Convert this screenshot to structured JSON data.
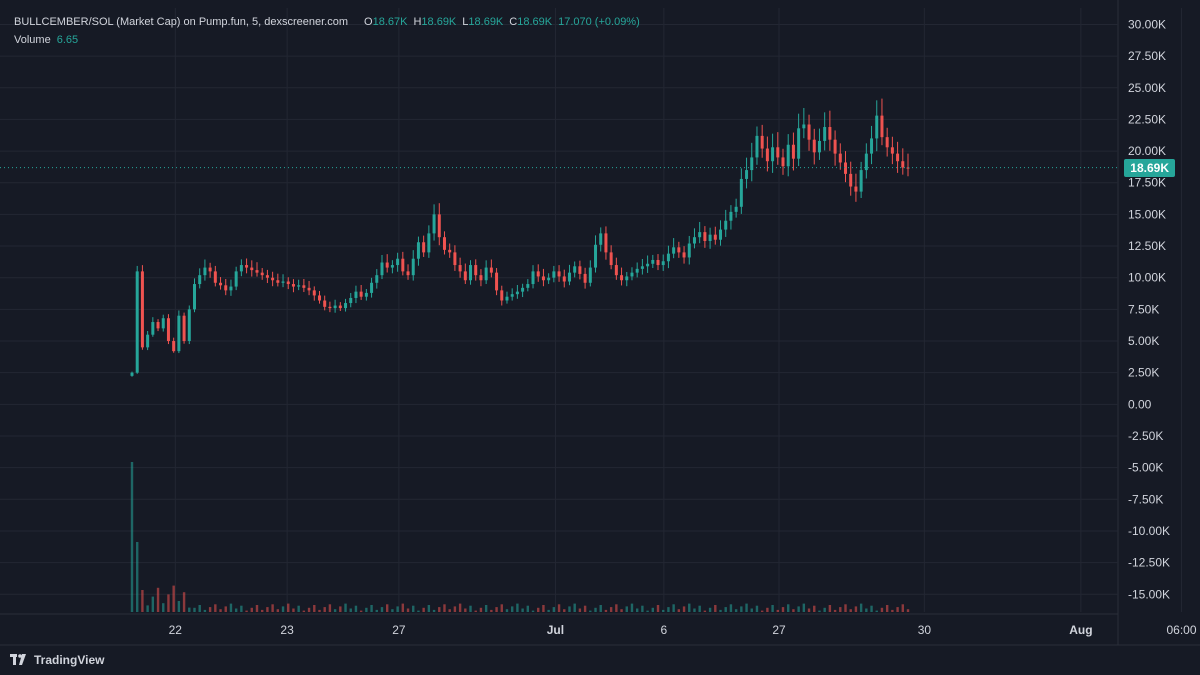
{
  "legend": {
    "symbol": "BULLCEMBER/SOL (Market Cap) on Pump.fun, 5, dexscreener.com",
    "open_label": "O",
    "open": "18.67K",
    "high_label": "H",
    "high": "18.69K",
    "low_label": "L",
    "low": "18.69K",
    "close_label": "C",
    "close": "18.69K",
    "change": "17.070 (+0.09%)",
    "volume_label": "Volume",
    "volume": "6.65"
  },
  "price_tag": "18.69K",
  "brand": "TradingView",
  "colors": {
    "background": "#161a25",
    "grid": "#232733",
    "up": "#26a69a",
    "down": "#ef5350",
    "text": "#d1d4dc"
  },
  "chart_data": {
    "type": "candlestick",
    "y_axis_labels": [
      "30.00K",
      "27.50K",
      "25.00K",
      "22.50K",
      "20.00K",
      "17.50K",
      "15.00K",
      "12.50K",
      "10.00K",
      "7.50K",
      "5.00K",
      "2.50K",
      "0.00",
      "-2.50K",
      "-5.00K",
      "-7.50K",
      "-10.00K",
      "-12.50K",
      "-15.00K"
    ],
    "y_ticks": [
      30000,
      27500,
      25000,
      22500,
      20000,
      17500,
      15000,
      12500,
      10000,
      7500,
      5000,
      2500,
      0,
      -2500,
      -5000,
      -7500,
      -10000,
      -12500,
      -15000
    ],
    "ylim": [
      -16400,
      31300
    ],
    "x_axis_labels": [
      "22",
      "23",
      "27",
      "Jul",
      "6",
      "27",
      "30",
      "Aug",
      "06:00"
    ],
    "x_label_index": [
      0.045,
      0.145,
      0.245,
      0.385,
      0.482,
      0.585,
      0.715,
      0.855,
      0.945
    ],
    "last_price": 18690,
    "series": [
      {
        "name": "price",
        "ohlc_points": [
          [
            0,
            2500
          ],
          [
            1,
            10500
          ],
          [
            2,
            4500
          ],
          [
            3,
            5500
          ],
          [
            4,
            6500
          ],
          [
            5,
            6000
          ],
          [
            6,
            6800
          ],
          [
            7,
            5000
          ],
          [
            8,
            4200
          ],
          [
            9,
            7000
          ],
          [
            10,
            5000
          ],
          [
            11,
            7500
          ],
          [
            12,
            9500
          ],
          [
            13,
            10200
          ],
          [
            14,
            10800
          ],
          [
            15,
            10500
          ],
          [
            16,
            9600
          ],
          [
            17,
            9400
          ],
          [
            18,
            9000
          ],
          [
            19,
            9300
          ],
          [
            20,
            10500
          ],
          [
            21,
            11000
          ],
          [
            22,
            10800
          ],
          [
            23,
            10600
          ],
          [
            24,
            10400
          ],
          [
            25,
            10200
          ],
          [
            26,
            10000
          ],
          [
            27,
            9800
          ],
          [
            28,
            9600
          ],
          [
            29,
            9700
          ],
          [
            30,
            9500
          ],
          [
            31,
            9300
          ],
          [
            32,
            9400
          ],
          [
            33,
            9200
          ],
          [
            34,
            9000
          ],
          [
            35,
            8600
          ],
          [
            36,
            8200
          ],
          [
            37,
            7700
          ],
          [
            38,
            7600
          ],
          [
            39,
            7800
          ],
          [
            40,
            7600
          ],
          [
            41,
            8000
          ],
          [
            42,
            8400
          ],
          [
            43,
            8900
          ],
          [
            44,
            8500
          ],
          [
            45,
            8800
          ],
          [
            46,
            9600
          ],
          [
            47,
            10200
          ],
          [
            48,
            11200
          ],
          [
            49,
            10800
          ],
          [
            50,
            11000
          ],
          [
            51,
            11500
          ],
          [
            52,
            10500
          ],
          [
            53,
            10200
          ],
          [
            54,
            11500
          ],
          [
            55,
            12800
          ],
          [
            56,
            12000
          ],
          [
            57,
            13500
          ],
          [
            58,
            15000
          ],
          [
            59,
            13200
          ],
          [
            60,
            12200
          ],
          [
            61,
            12000
          ],
          [
            62,
            11000
          ],
          [
            63,
            10500
          ],
          [
            64,
            9800
          ],
          [
            65,
            11000
          ],
          [
            66,
            10200
          ],
          [
            67,
            9800
          ],
          [
            68,
            10800
          ],
          [
            69,
            10400
          ],
          [
            70,
            9000
          ],
          [
            71,
            8200
          ],
          [
            72,
            8500
          ],
          [
            73,
            8700
          ],
          [
            74,
            8900
          ],
          [
            75,
            9200
          ],
          [
            76,
            9500
          ],
          [
            77,
            10500
          ],
          [
            78,
            10100
          ],
          [
            79,
            9800
          ],
          [
            80,
            10000
          ],
          [
            81,
            10500
          ],
          [
            82,
            10100
          ],
          [
            83,
            9700
          ],
          [
            84,
            10400
          ],
          [
            85,
            10900
          ],
          [
            86,
            10300
          ],
          [
            87,
            9600
          ],
          [
            88,
            10800
          ],
          [
            89,
            12600
          ],
          [
            90,
            13500
          ],
          [
            91,
            12000
          ],
          [
            92,
            11000
          ],
          [
            93,
            10200
          ],
          [
            94,
            9800
          ],
          [
            95,
            10100
          ],
          [
            96,
            10400
          ],
          [
            97,
            10700
          ],
          [
            98,
            10900
          ],
          [
            99,
            11100
          ],
          [
            100,
            11400
          ],
          [
            101,
            11000
          ],
          [
            102,
            11300
          ],
          [
            103,
            11900
          ],
          [
            104,
            12400
          ],
          [
            105,
            12000
          ],
          [
            106,
            11600
          ],
          [
            107,
            12700
          ],
          [
            108,
            13200
          ],
          [
            109,
            13600
          ],
          [
            110,
            12900
          ],
          [
            111,
            13400
          ],
          [
            112,
            13000
          ],
          [
            113,
            13800
          ],
          [
            114,
            14500
          ],
          [
            115,
            15200
          ],
          [
            116,
            15600
          ],
          [
            117,
            17800
          ],
          [
            118,
            18500
          ],
          [
            119,
            19500
          ],
          [
            120,
            21200
          ],
          [
            121,
            20200
          ],
          [
            122,
            19200
          ],
          [
            123,
            20300
          ],
          [
            124,
            19500
          ],
          [
            125,
            18800
          ],
          [
            126,
            20500
          ],
          [
            127,
            19400
          ],
          [
            128,
            21800
          ],
          [
            129,
            22100
          ],
          [
            130,
            20900
          ],
          [
            131,
            19900
          ],
          [
            132,
            20800
          ],
          [
            133,
            21900
          ],
          [
            134,
            20900
          ],
          [
            135,
            19800
          ],
          [
            136,
            19100
          ],
          [
            137,
            18200
          ],
          [
            138,
            17200
          ],
          [
            139,
            16800
          ],
          [
            140,
            18500
          ],
          [
            141,
            19800
          ],
          [
            142,
            21000
          ],
          [
            143,
            22800
          ],
          [
            144,
            21100
          ],
          [
            145,
            20300
          ],
          [
            146,
            19800
          ],
          [
            147,
            19200
          ],
          [
            148,
            18700
          ],
          [
            149,
            18690
          ]
        ]
      }
    ]
  }
}
